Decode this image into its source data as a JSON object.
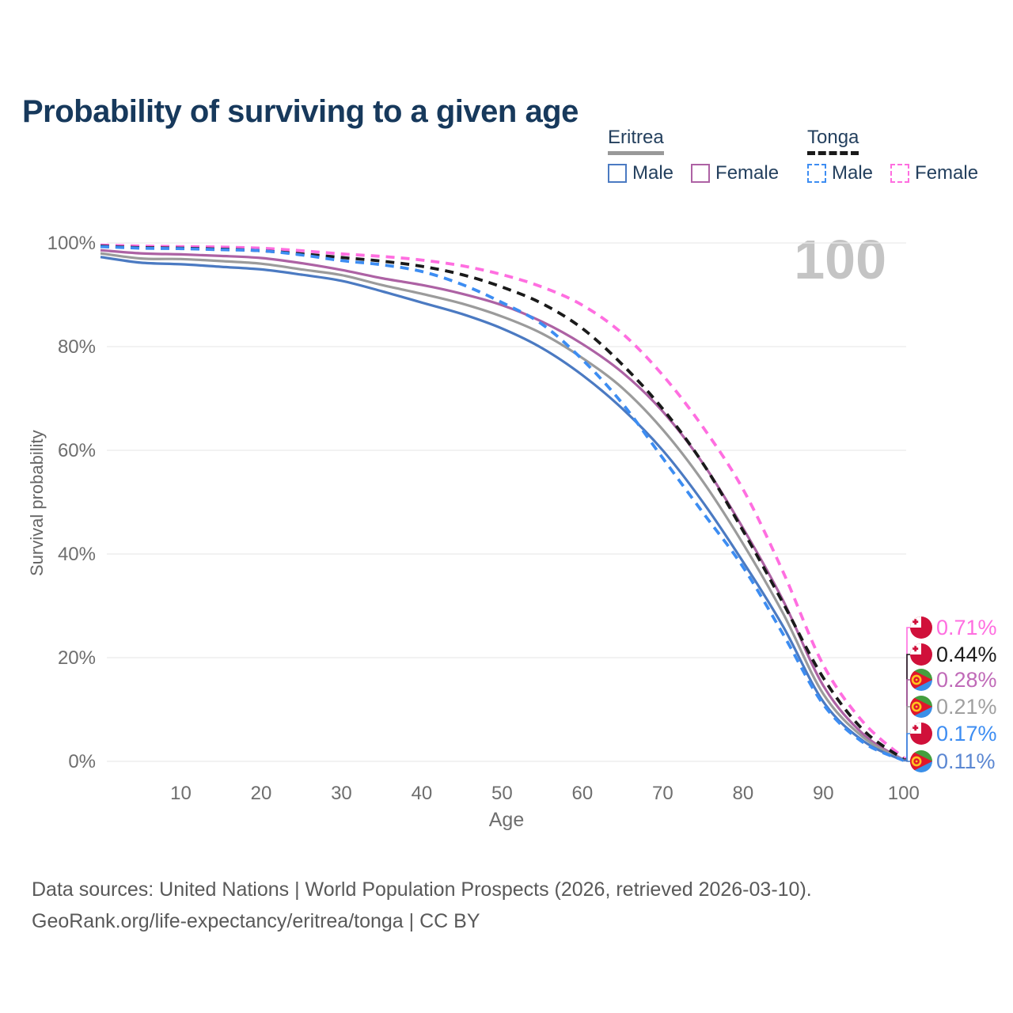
{
  "title": "Probability of surviving to a given age",
  "watermark_age": "100",
  "legend": {
    "groups": [
      {
        "label": "Eritrea",
        "line_style": "solid",
        "underline_color": "#999999",
        "items": [
          {
            "label": "Male",
            "color": "#4b7ac2"
          },
          {
            "label": "Female",
            "color": "#ad62a4"
          }
        ]
      },
      {
        "label": "Tonga",
        "line_style": "dashed",
        "underline_color": "#1a1a1a",
        "items": [
          {
            "label": "Male",
            "color": "#3d8df2"
          },
          {
            "label": "Female",
            "color": "#ff6ee0"
          }
        ]
      }
    ]
  },
  "flags": {
    "tonga": {
      "red": "#d0103a",
      "white": "#ffffff"
    },
    "eritrea": {
      "green": "#449e3e",
      "blue": "#3a8fe8",
      "red": "#e0162b",
      "yellow": "#ffc31f"
    }
  },
  "chart_data": {
    "type": "line",
    "title": "Probability of surviving to a given age",
    "xlabel": "Age",
    "ylabel": "Survival probability",
    "xlim": [
      0,
      100
    ],
    "ylim": [
      0,
      100
    ],
    "grid": "horizontal",
    "legend_position": "top-right",
    "x_ticks": [
      10,
      20,
      30,
      40,
      50,
      60,
      70,
      80,
      90,
      100
    ],
    "y_ticks": [
      {
        "value": 0,
        "label": "0%"
      },
      {
        "value": 20,
        "label": "20%"
      },
      {
        "value": 40,
        "label": "40%"
      },
      {
        "value": 60,
        "label": "60%"
      },
      {
        "value": 80,
        "label": "80%"
      },
      {
        "value": 100,
        "label": "100%"
      }
    ],
    "x": [
      0,
      5,
      10,
      15,
      20,
      25,
      30,
      35,
      40,
      45,
      50,
      55,
      60,
      65,
      70,
      75,
      80,
      85,
      90,
      95,
      100
    ],
    "series": [
      {
        "name": "Tonga Female",
        "country": "Tonga",
        "sex": "Female",
        "color": "#ff6ee0",
        "label_color": "#ff6ee0",
        "dashed": true,
        "flag": "tonga",
        "end_label": "0.71%",
        "values": [
          99.6,
          99.4,
          99.3,
          99.2,
          99.0,
          98.5,
          97.9,
          97.4,
          96.7,
          95.6,
          93.9,
          91.5,
          88.0,
          82.5,
          74.5,
          64.5,
          52.5,
          36.5,
          18.6,
          7.5,
          0.71
        ]
      },
      {
        "name": "Tonga Total",
        "country": "Tonga",
        "sex": "Both",
        "color": "#1a1a1a",
        "label_color": "#1d1d1d",
        "dashed": true,
        "flag": "tonga",
        "end_label": "0.44%",
        "values": [
          99.4,
          99.1,
          99.0,
          98.8,
          98.5,
          97.9,
          97.2,
          96.5,
          95.5,
          93.9,
          91.5,
          88.3,
          83.5,
          76.5,
          68.0,
          57.5,
          44.5,
          30.5,
          16.1,
          6.0,
          0.44
        ]
      },
      {
        "name": "Eritrea Female",
        "country": "Eritrea",
        "sex": "Female",
        "color": "#ad62a4",
        "label_color": "#c06ab8",
        "dashed": false,
        "flag": "eritrea",
        "end_label": "0.28%",
        "values": [
          98.6,
          98.0,
          97.8,
          97.5,
          97.1,
          96.1,
          94.8,
          93.2,
          91.9,
          90.2,
          88.0,
          84.8,
          80.5,
          75.0,
          67.5,
          57.5,
          45.0,
          31.0,
          14.6,
          5.2,
          0.28
        ]
      },
      {
        "name": "Eritrea Total",
        "country": "Eritrea",
        "sex": "Both",
        "color": "#9b9b9b",
        "label_color": "#a0a0a0",
        "dashed": false,
        "flag": "eritrea",
        "end_label": "0.21%",
        "values": [
          98.0,
          97.0,
          96.9,
          96.5,
          96.0,
          94.9,
          93.8,
          91.9,
          90.2,
          88.3,
          85.8,
          82.5,
          77.8,
          72.0,
          64.0,
          54.0,
          42.0,
          28.5,
          13.0,
          4.6,
          0.21
        ]
      },
      {
        "name": "Tonga Male",
        "country": "Tonga",
        "sex": "Male",
        "color": "#3d8df2",
        "label_color": "#3d8df2",
        "dashed": true,
        "flag": "tonga",
        "end_label": "0.17%",
        "values": [
          99.3,
          99.0,
          98.9,
          98.7,
          98.5,
          97.7,
          96.6,
          95.8,
          94.5,
          92.0,
          88.5,
          84.3,
          77.5,
          69.0,
          58.5,
          48.0,
          37.5,
          24.5,
          11.0,
          3.6,
          0.17
        ]
      },
      {
        "name": "Eritrea Male",
        "country": "Eritrea",
        "sex": "Male",
        "color": "#4b7ac2",
        "label_color": "#5b87d2",
        "dashed": false,
        "flag": "eritrea",
        "end_label": "0.11%",
        "values": [
          97.3,
          96.2,
          95.9,
          95.4,
          94.9,
          93.9,
          92.7,
          90.7,
          88.5,
          86.3,
          83.5,
          79.7,
          74.5,
          68.0,
          60.0,
          50.0,
          38.5,
          26.0,
          11.5,
          3.9,
          0.11
        ]
      }
    ]
  },
  "footer": {
    "line1": "Data sources: United Nations | World Population Prospects (2026, retrieved 2026-03-10).",
    "line2": "GeoRank.org/life-expectancy/eritrea/tonga | CC BY"
  }
}
